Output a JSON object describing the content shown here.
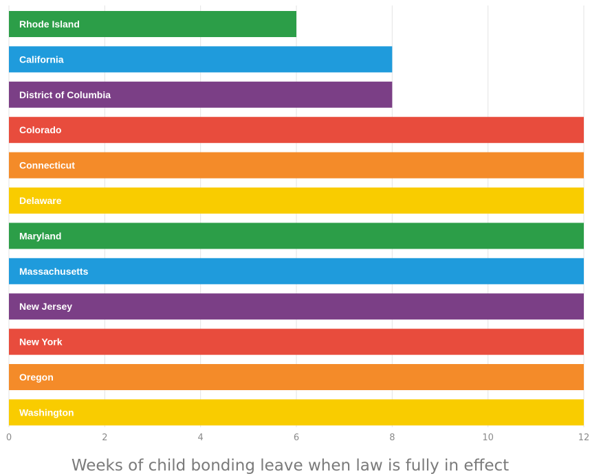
{
  "chart_data": {
    "type": "bar",
    "orientation": "horizontal",
    "categories": [
      "Rhode Island",
      "California",
      "District of Columbia",
      "Colorado",
      "Connecticut",
      "Delaware",
      "Maryland",
      "Massachusetts",
      "New Jersey",
      "New York",
      "Oregon",
      "Washington"
    ],
    "values": [
      6,
      8,
      8,
      12,
      12,
      12,
      12,
      12,
      12,
      12,
      12,
      12
    ],
    "colors": [
      "#2c9e48",
      "#1f9bdc",
      "#7b3f86",
      "#e84c3d",
      "#f48b29",
      "#f9cc00",
      "#2c9e48",
      "#1f9bdc",
      "#7b3f86",
      "#e84c3d",
      "#f48b29",
      "#f9cc00"
    ],
    "xlabel": "Weeks of child bonding leave when law is fully in effect",
    "xlim": [
      0,
      12
    ],
    "xticks": [
      0,
      2,
      4,
      6,
      8,
      10,
      12
    ],
    "xtick_labels": [
      "0",
      "2",
      "4",
      "6",
      "8",
      "10",
      "12"
    ],
    "grid": "vertical",
    "legend": "none"
  }
}
